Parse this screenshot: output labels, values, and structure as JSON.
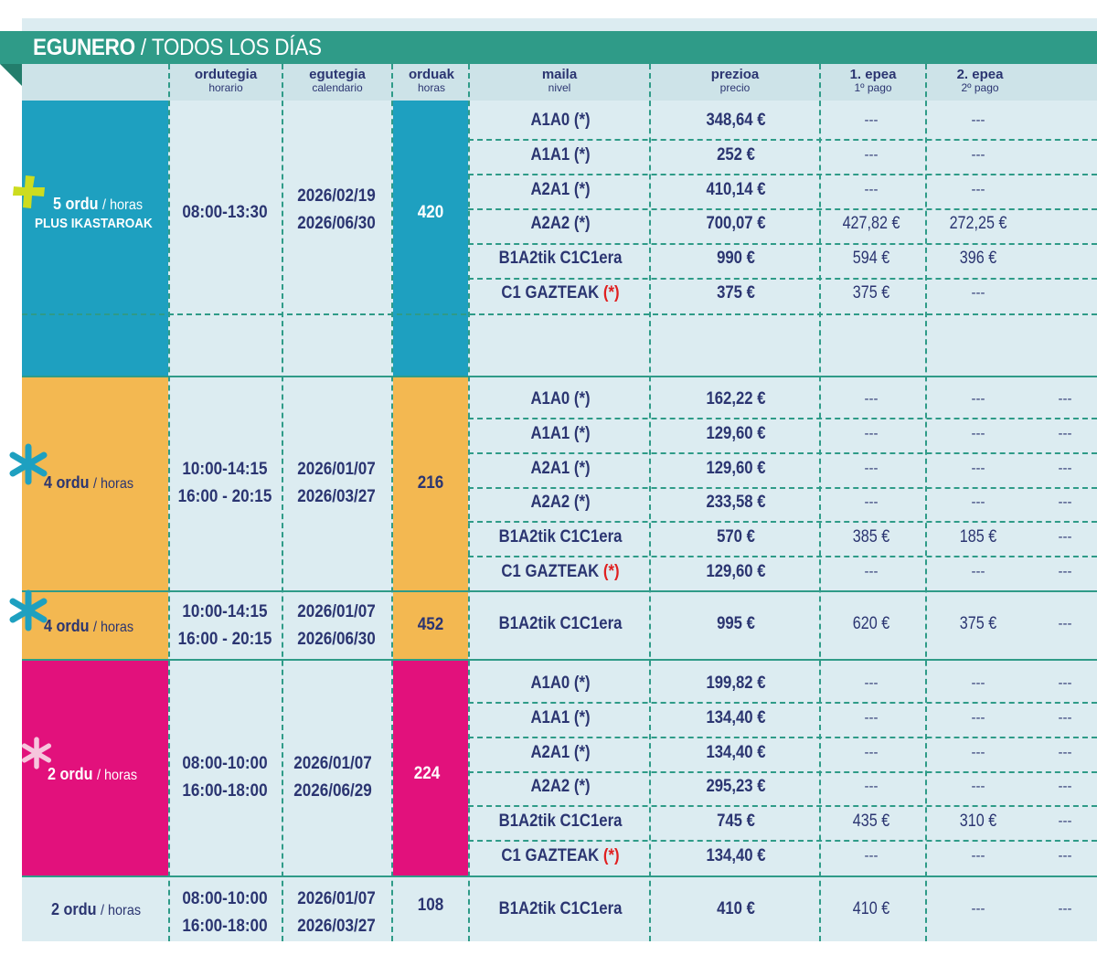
{
  "title": {
    "eu": "EGUNERO",
    "sep": "/",
    "es": "TODOS LOS DÍAS"
  },
  "headers": [
    {
      "a": "ordutegia",
      "b": "horario"
    },
    {
      "a": "egutegia",
      "b": "calendario"
    },
    {
      "a": "orduak",
      "b": "horas"
    },
    {
      "a": "maila",
      "b": "nivel"
    },
    {
      "a": "prezioa",
      "b": "precio"
    },
    {
      "a": "1. epea",
      "b": "1º pago"
    },
    {
      "a": "2. epea",
      "b": "2º pago"
    }
  ],
  "groups": [
    {
      "label_bold": "5 ordu",
      "label_thin": "/ horas",
      "label_extra": "PLUS IKASTAROAK",
      "schedule": [
        "08:00-13:30"
      ],
      "calendar": [
        "2026/02/19",
        "2026/06/30"
      ],
      "hours": "420",
      "rows": [
        {
          "level": "A1A0 (*)",
          "price": "348,64 €",
          "p1": "---",
          "p2": "---"
        },
        {
          "level": "A1A1 (*)",
          "price": "252 €",
          "p1": "---",
          "p2": "---"
        },
        {
          "level": "A2A1 (*)",
          "price": "410,14 €",
          "p1": "---",
          "p2": "---"
        },
        {
          "level": "A2A2 (*)",
          "price": "700,07 €",
          "p1": "427,82 €",
          "p2": "272,25 €"
        },
        {
          "level": "B1A2tik C1C1era",
          "price": "990 €",
          "p1": "594 €",
          "p2": "396 €"
        },
        {
          "level": "C1 GAZTEAK",
          "star": "(*)",
          "price": "375 €",
          "p1": "375 €",
          "p2": "---"
        }
      ]
    },
    {
      "label_bold": "4 ordu",
      "label_thin": "/ horas",
      "schedule": [
        "10:00-14:15",
        "16:00 - 20:15"
      ],
      "calendar": [
        "2026/01/07",
        "2026/03/27"
      ],
      "hours": "216",
      "rows": [
        {
          "level": "A1A0 (*)",
          "price": "162,22 €",
          "p1": "---",
          "p2": "---",
          "p3": "---"
        },
        {
          "level": "A1A1 (*)",
          "price": "129,60 €",
          "p1": "---",
          "p2": "---",
          "p3": "---"
        },
        {
          "level": "A2A1 (*)",
          "price": "129,60 €",
          "p1": "---",
          "p2": "---",
          "p3": "---"
        },
        {
          "level": "A2A2 (*)",
          "price": "233,58 €",
          "p1": "---",
          "p2": "---",
          "p3": "---"
        },
        {
          "level": "B1A2tik C1C1era",
          "price": "570 €",
          "p1": "385 €",
          "p2": "185 €",
          "p3": "---"
        },
        {
          "level": "C1 GAZTEAK",
          "star": "(*)",
          "price": "129,60 €",
          "p1": "---",
          "p2": "---",
          "p3": "---"
        }
      ]
    },
    {
      "label_bold": "4 ordu",
      "label_thin": "/ horas",
      "schedule": [
        "10:00-14:15",
        "16:00 - 20:15"
      ],
      "calendar": [
        "2026/01/07",
        "2026/06/30"
      ],
      "hours": "452",
      "rows": [
        {
          "level": "B1A2tik C1C1era",
          "price": "995 €",
          "p1": "620 €",
          "p2": "375 €",
          "p3": "---"
        }
      ]
    },
    {
      "label_bold": "2 ordu",
      "label_thin": "/ horas",
      "schedule": [
        "08:00-10:00",
        "16:00-18:00"
      ],
      "calendar": [
        "2026/01/07",
        "2026/06/29"
      ],
      "hours": "224",
      "rows": [
        {
          "level": "A1A0 (*)",
          "price": "199,82 €",
          "p1": "---",
          "p2": "---",
          "p3": "---"
        },
        {
          "level": "A1A1 (*)",
          "price": "134,40 €",
          "p1": "---",
          "p2": "---",
          "p3": "---"
        },
        {
          "level": "A2A1 (*)",
          "price": "134,40 €",
          "p1": "---",
          "p2": "---",
          "p3": "---"
        },
        {
          "level": "A2A2 (*)",
          "price": "295,23 €",
          "p1": "---",
          "p2": "---",
          "p3": "---"
        },
        {
          "level": "B1A2tik C1C1era",
          "price": "745 €",
          "p1": "435 €",
          "p2": "310 €",
          "p3": "---"
        },
        {
          "level": "C1 GAZTEAK",
          "star": "(*)",
          "price": "134,40 €",
          "p1": "---",
          "p2": "---",
          "p3": "---"
        }
      ]
    },
    {
      "label_bold": "2 ordu",
      "label_thin": "/ horas",
      "schedule": [
        "08:00-10:00",
        "16:00-18:00"
      ],
      "calendar": [
        "2026/01/07",
        "2026/03/27"
      ],
      "hours": "108",
      "rows": [
        {
          "level": "B1A2tik C1C1era",
          "price": "410 €",
          "p1": "410 €",
          "p2": "---",
          "p3": "---"
        }
      ]
    }
  ],
  "colors": {
    "teal": "#2f9b88",
    "cyan": "#1ea0c0",
    "orange": "#f3b851",
    "magenta": "#e2117c",
    "navy": "#2b3571",
    "star_red": "#e02020",
    "plus_yellow": "#cddc1f",
    "pale": "#dcecf1"
  },
  "icons": [
    "plus-icon",
    "asterisk-icon-blue",
    "asterisk-icon-blue",
    "asterisk-icon-pink"
  ]
}
